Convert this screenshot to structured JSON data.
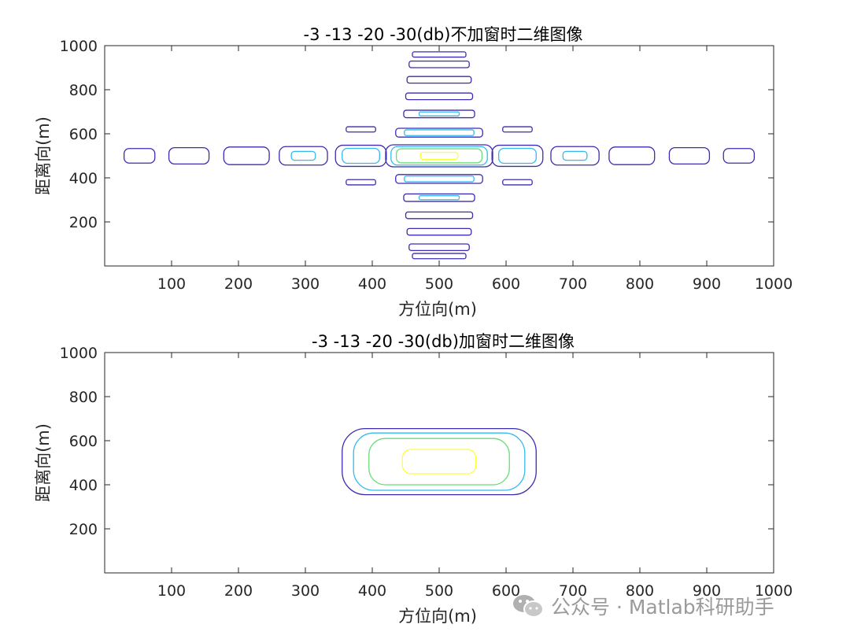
{
  "chart_data": [
    {
      "type": "contour",
      "title": "-3 -13 -20 -30(db)不加窗时二维图像",
      "xlabel": "方位向(m)",
      "ylabel": "距离向(m)",
      "xlim": [
        0,
        1000
      ],
      "ylim": [
        0,
        1000
      ],
      "xticks": [
        100,
        200,
        300,
        400,
        500,
        600,
        700,
        800,
        900,
        1000
      ],
      "yticks": [
        200,
        400,
        600,
        800,
        1000
      ],
      "levels": [
        {
          "db": -3,
          "color": "#ffff33"
        },
        {
          "db": -13,
          "color": "#66dd77"
        },
        {
          "db": -20,
          "color": "#33bbee"
        },
        {
          "db": -30,
          "color": "#3d2bb0"
        }
      ],
      "contours": [
        {
          "level": -30,
          "cx": 500,
          "cy": 500,
          "rx": 80,
          "ry": 50
        },
        {
          "level": -20,
          "cx": 500,
          "cy": 500,
          "rx": 72,
          "ry": 42
        },
        {
          "level": -13,
          "cx": 500,
          "cy": 500,
          "rx": 64,
          "ry": 32
        },
        {
          "level": -3,
          "cx": 500,
          "cy": 500,
          "rx": 28,
          "ry": 16
        },
        {
          "level": -30,
          "cx": 500,
          "cy": 605,
          "rx": 65,
          "ry": 20
        },
        {
          "level": -20,
          "cx": 500,
          "cy": 605,
          "rx": 52,
          "ry": 13
        },
        {
          "level": -30,
          "cx": 500,
          "cy": 395,
          "rx": 65,
          "ry": 20
        },
        {
          "level": -20,
          "cx": 500,
          "cy": 395,
          "rx": 52,
          "ry": 13
        },
        {
          "level": -30,
          "cx": 500,
          "cy": 690,
          "rx": 53,
          "ry": 17
        },
        {
          "level": -20,
          "cx": 500,
          "cy": 690,
          "rx": 30,
          "ry": 9
        },
        {
          "level": -30,
          "cx": 500,
          "cy": 310,
          "rx": 53,
          "ry": 17
        },
        {
          "level": -20,
          "cx": 500,
          "cy": 310,
          "rx": 30,
          "ry": 9
        },
        {
          "level": -30,
          "cx": 500,
          "cy": 770,
          "rx": 50,
          "ry": 15
        },
        {
          "level": -30,
          "cx": 500,
          "cy": 230,
          "rx": 50,
          "ry": 15
        },
        {
          "level": -30,
          "cx": 500,
          "cy": 845,
          "rx": 48,
          "ry": 15
        },
        {
          "level": -30,
          "cx": 500,
          "cy": 155,
          "rx": 48,
          "ry": 15
        },
        {
          "level": -30,
          "cx": 500,
          "cy": 915,
          "rx": 45,
          "ry": 15
        },
        {
          "level": -30,
          "cx": 500,
          "cy": 85,
          "rx": 45,
          "ry": 15
        },
        {
          "level": -30,
          "cx": 500,
          "cy": 960,
          "rx": 40,
          "ry": 12
        },
        {
          "level": -30,
          "cx": 500,
          "cy": 45,
          "rx": 40,
          "ry": 12
        },
        {
          "level": -30,
          "cx": 383,
          "cy": 500,
          "rx": 38,
          "ry": 48
        },
        {
          "level": -20,
          "cx": 383,
          "cy": 500,
          "rx": 28,
          "ry": 34
        },
        {
          "level": -30,
          "cx": 617,
          "cy": 500,
          "rx": 38,
          "ry": 48
        },
        {
          "level": -20,
          "cx": 617,
          "cy": 500,
          "rx": 28,
          "ry": 34
        },
        {
          "level": -30,
          "cx": 297,
          "cy": 500,
          "rx": 36,
          "ry": 42
        },
        {
          "level": -20,
          "cx": 297,
          "cy": 500,
          "rx": 18,
          "ry": 20
        },
        {
          "level": -30,
          "cx": 703,
          "cy": 500,
          "rx": 36,
          "ry": 42
        },
        {
          "level": -20,
          "cx": 703,
          "cy": 500,
          "rx": 18,
          "ry": 20
        },
        {
          "level": -30,
          "cx": 212,
          "cy": 500,
          "rx": 34,
          "ry": 40
        },
        {
          "level": -30,
          "cx": 788,
          "cy": 500,
          "rx": 34,
          "ry": 40
        },
        {
          "level": -30,
          "cx": 126,
          "cy": 500,
          "rx": 30,
          "ry": 37
        },
        {
          "level": -30,
          "cx": 874,
          "cy": 500,
          "rx": 30,
          "ry": 37
        },
        {
          "level": -30,
          "cx": 52,
          "cy": 500,
          "rx": 23,
          "ry": 33
        },
        {
          "level": -30,
          "cx": 948,
          "cy": 500,
          "rx": 23,
          "ry": 33
        },
        {
          "level": -30,
          "cx": 383,
          "cy": 620,
          "rx": 22,
          "ry": 12
        },
        {
          "level": -30,
          "cx": 617,
          "cy": 620,
          "rx": 22,
          "ry": 12
        },
        {
          "level": -30,
          "cx": 383,
          "cy": 380,
          "rx": 22,
          "ry": 12
        },
        {
          "level": -30,
          "cx": 617,
          "cy": 380,
          "rx": 22,
          "ry": 12
        }
      ]
    },
    {
      "type": "contour",
      "title": "-3 -13 -20 -30(db)加窗时二维图像",
      "xlabel": "方位向(m)",
      "ylabel": "距离向(m)",
      "xlim": [
        0,
        1000
      ],
      "ylim": [
        0,
        1000
      ],
      "xticks": [
        100,
        200,
        300,
        400,
        500,
        600,
        700,
        800,
        900,
        1000
      ],
      "yticks": [
        200,
        400,
        600,
        800,
        1000
      ],
      "levels": [
        {
          "db": -3,
          "color": "#ffff33"
        },
        {
          "db": -13,
          "color": "#66dd77"
        },
        {
          "db": -20,
          "color": "#33bbee"
        },
        {
          "db": -30,
          "color": "#3d2bb0"
        }
      ],
      "contours": [
        {
          "level": -30,
          "cx": 500,
          "cy": 505,
          "rx": 145,
          "ry": 150
        },
        {
          "level": -20,
          "cx": 500,
          "cy": 505,
          "rx": 128,
          "ry": 130
        },
        {
          "level": -13,
          "cx": 500,
          "cy": 505,
          "rx": 105,
          "ry": 105
        },
        {
          "level": -3,
          "cx": 500,
          "cy": 505,
          "rx": 55,
          "ry": 55
        }
      ]
    }
  ],
  "watermark": {
    "text": "公众号 · Matlab科研助手",
    "icon": "wechat-icon"
  }
}
